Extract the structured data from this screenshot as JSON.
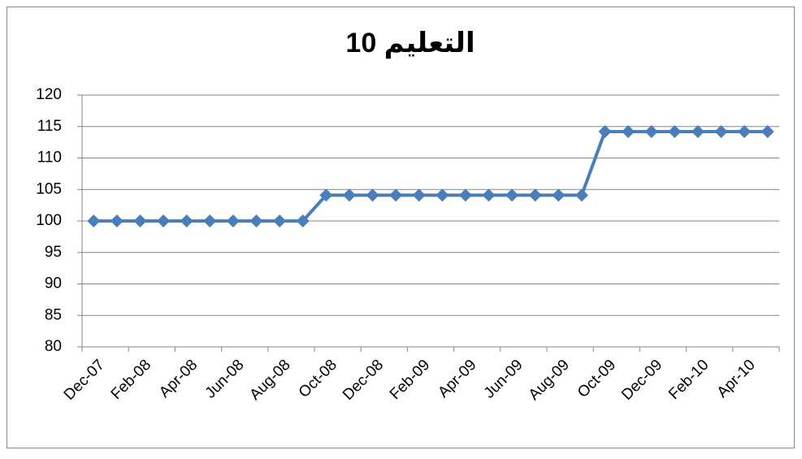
{
  "chart_data": {
    "type": "line",
    "title": "التعليم 10",
    "categories": [
      "Dec-07",
      null,
      "Feb-08",
      null,
      "Apr-08",
      null,
      "Jun-08",
      null,
      "Aug-08",
      null,
      "Oct-08",
      null,
      "Dec-08",
      null,
      "Feb-09",
      null,
      "Apr-09",
      null,
      "Jun-09",
      null,
      "Aug-09",
      null,
      "Oct-09",
      null,
      "Dec-09",
      null,
      "Feb-10",
      null,
      "Apr-10",
      null
    ],
    "series": [
      {
        "color": "#4a7ebb",
        "values": [
          100,
          100,
          100,
          100,
          100,
          100,
          100,
          100,
          100,
          100,
          104.1,
          104.1,
          104.1,
          104.1,
          104.1,
          104.1,
          104.1,
          104.1,
          104.1,
          104.1,
          104.1,
          104.1,
          114.2,
          114.2,
          114.2,
          114.2,
          114.2,
          114.2,
          114.2,
          114.2
        ]
      }
    ],
    "ylim": [
      80,
      120
    ],
    "yticks": [
      80,
      85,
      90,
      95,
      100,
      105,
      110,
      115,
      120
    ],
    "grid": true
  }
}
